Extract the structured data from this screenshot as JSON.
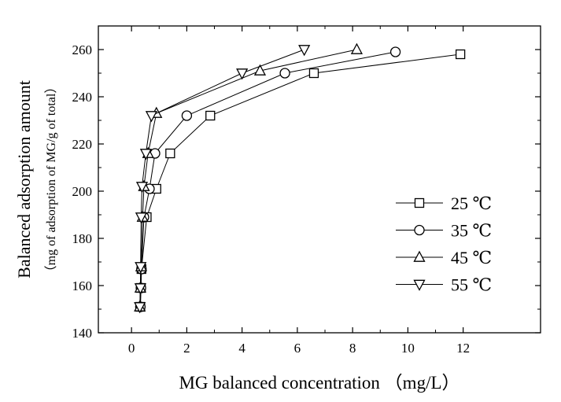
{
  "chart_data": {
    "type": "line",
    "title": "",
    "xlabel": "MG balanced concentration （mg/L）",
    "ylabel": "Balanced adsorption amount",
    "ylabel_sub": "（mg of adsorption of MG/g of total）",
    "xlim": [
      -1.2,
      14.8
    ],
    "ylim": [
      140,
      270
    ],
    "x_ticks": [
      0,
      2,
      4,
      6,
      8,
      10,
      12
    ],
    "y_ticks": [
      140,
      160,
      180,
      200,
      220,
      240,
      260
    ],
    "grid": false,
    "legend_position": "center-right",
    "series": [
      {
        "name": "25 ℃",
        "marker": "square",
        "points": [
          [
            0.32,
            151
          ],
          [
            0.34,
            159
          ],
          [
            0.36,
            167
          ],
          [
            0.55,
            189
          ],
          [
            0.9,
            201
          ],
          [
            1.4,
            216
          ],
          [
            2.85,
            232
          ],
          [
            6.6,
            250
          ],
          [
            11.9,
            258
          ]
        ]
      },
      {
        "name": "35 ℃",
        "marker": "circle",
        "points": [
          [
            0.32,
            151
          ],
          [
            0.34,
            159
          ],
          [
            0.36,
            167
          ],
          [
            0.45,
            189
          ],
          [
            0.65,
            201
          ],
          [
            0.85,
            216
          ],
          [
            2.0,
            232
          ],
          [
            5.55,
            250
          ],
          [
            9.55,
            259
          ]
        ]
      },
      {
        "name": "45 ℃",
        "marker": "triangle-up",
        "points": [
          [
            0.3,
            151
          ],
          [
            0.32,
            159
          ],
          [
            0.35,
            168
          ],
          [
            0.4,
            189
          ],
          [
            0.45,
            202
          ],
          [
            0.6,
            216
          ],
          [
            0.9,
            233
          ],
          [
            4.65,
            251
          ],
          [
            8.15,
            260
          ]
        ]
      },
      {
        "name": "55 ℃",
        "marker": "triangle-down",
        "points": [
          [
            0.3,
            151
          ],
          [
            0.32,
            159
          ],
          [
            0.33,
            168
          ],
          [
            0.35,
            189
          ],
          [
            0.38,
            202
          ],
          [
            0.52,
            216
          ],
          [
            0.72,
            232
          ],
          [
            4.0,
            250
          ],
          [
            6.25,
            260
          ]
        ]
      }
    ]
  }
}
